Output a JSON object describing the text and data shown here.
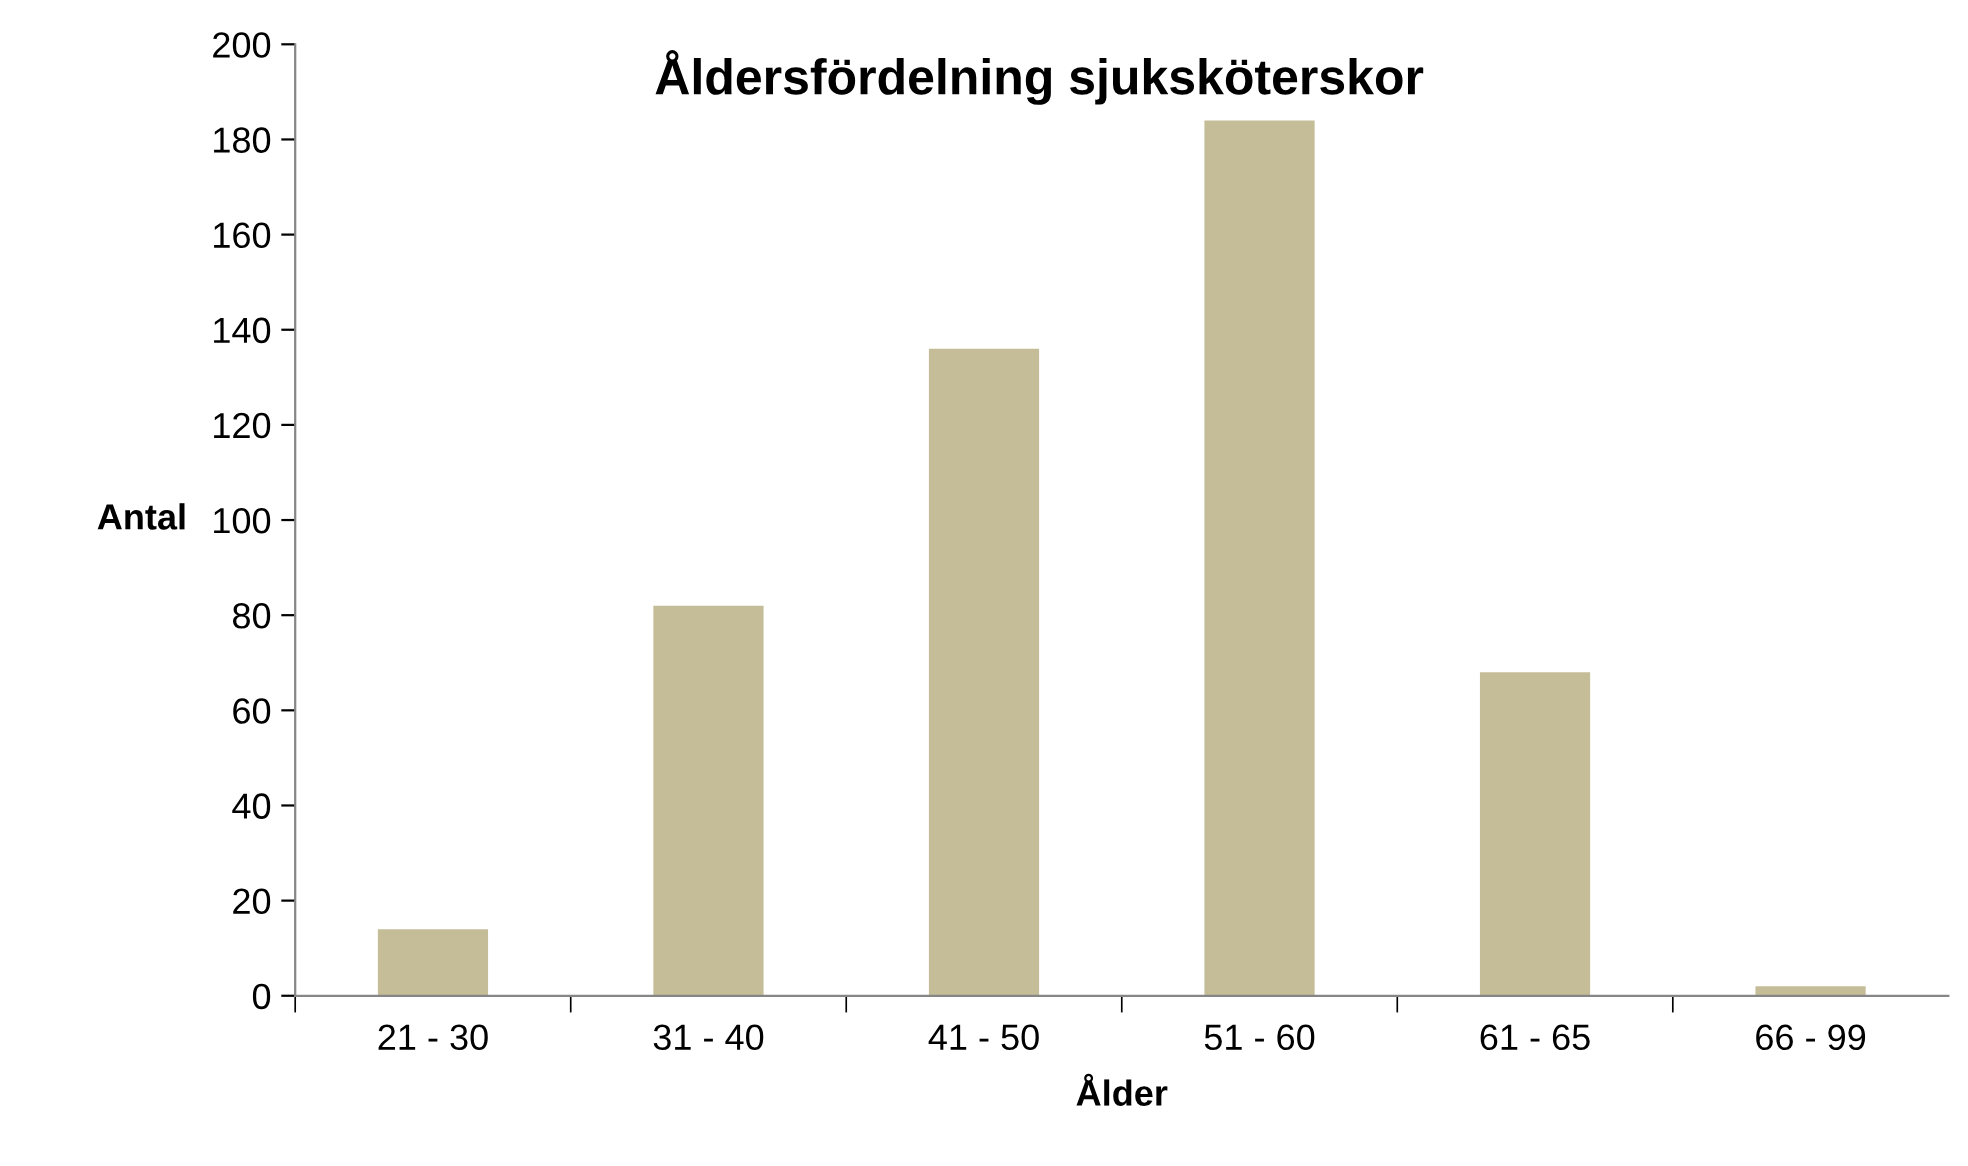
{
  "chart_data": {
    "type": "bar",
    "title": "Åldersfördelning sjuksköterskor",
    "xlabel": "Ålder",
    "ylabel": "Antal",
    "categories": [
      "21 - 30",
      "31 - 40",
      "41 - 50",
      "51 - 60",
      "61 - 65",
      "66 - 99"
    ],
    "values": [
      14,
      82,
      136,
      184,
      68,
      2
    ],
    "color": "#c4bd97",
    "ylim": [
      0,
      200
    ],
    "yticks": [
      0,
      20,
      40,
      60,
      80,
      100,
      120,
      140,
      160,
      180,
      200
    ],
    "grid": false,
    "legend": false
  }
}
